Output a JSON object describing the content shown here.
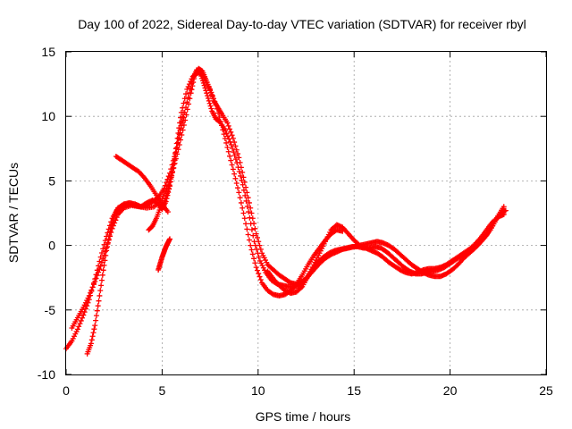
{
  "chart_data": {
    "type": "scatter",
    "title": "Day 100 of 2022, Sidereal Day-to-day VTEC variation (SDTVAR) for receiver rbyl",
    "xlabel": "GPS time / hours",
    "ylabel": "SDTVAR / TECUs",
    "xlim": [
      0,
      25
    ],
    "ylim": [
      -10,
      15
    ],
    "xticks": [
      0,
      5,
      10,
      15,
      20,
      25
    ],
    "yticks": [
      -10,
      -5,
      0,
      5,
      10,
      15
    ],
    "xtick_labels": [
      "0",
      "5",
      "10",
      "15",
      "20",
      "25"
    ],
    "ytick_labels": [
      "-10",
      "-5",
      "0",
      "5",
      "10",
      "15"
    ],
    "grid": true,
    "marker": "plus",
    "colors": {
      "series": "#ff0000",
      "grid": "#a0a0a0",
      "axis": "#000000"
    },
    "series": [
      {
        "name": "main-trace-a",
        "x": [
          0.0,
          0.3,
          0.6,
          0.9,
          1.2,
          1.5,
          1.8,
          2.1,
          2.4,
          2.7,
          3.0,
          3.3,
          3.6,
          3.9,
          4.2,
          4.5,
          4.8,
          5.1,
          5.4,
          5.7,
          6.0,
          6.3,
          6.6,
          6.8,
          7.0,
          7.2,
          7.4,
          7.6,
          7.8,
          8.0,
          8.3,
          8.6,
          8.9,
          9.2,
          9.5,
          9.8,
          10.1,
          10.4,
          10.7,
          11.0,
          11.3,
          11.6,
          11.9,
          12.2,
          12.5,
          12.8,
          13.1,
          13.4,
          13.7,
          14.0,
          14.3,
          14.6,
          14.9,
          15.2,
          15.5,
          15.8,
          16.1,
          16.4,
          16.7,
          17.0,
          17.3,
          17.6,
          17.9,
          18.2,
          18.5,
          18.8,
          19.1,
          19.4,
          19.7,
          20.0,
          20.3,
          20.6,
          20.9,
          21.2,
          21.5,
          21.8,
          22.1,
          22.4,
          22.7,
          22.9
        ],
        "y": [
          -8.0,
          -7.4,
          -6.5,
          -5.4,
          -4.2,
          -2.6,
          -0.9,
          0.7,
          2.1,
          2.9,
          3.2,
          3.3,
          3.2,
          3.0,
          3.1,
          3.4,
          3.7,
          4.4,
          5.6,
          7.2,
          9.1,
          11.1,
          12.9,
          13.6,
          13.3,
          12.4,
          11.4,
          10.4,
          9.8,
          9.6,
          8.9,
          7.8,
          6.4,
          4.7,
          2.6,
          0.3,
          -1.2,
          -2.1,
          -2.7,
          -3.0,
          -3.1,
          -3.2,
          -3.2,
          -3.1,
          -2.6,
          -1.9,
          -1.3,
          -0.9,
          -0.6,
          -0.4,
          -0.3,
          -0.2,
          -0.1,
          -0.1,
          -0.2,
          -0.2,
          -0.1,
          -0.2,
          -0.5,
          -0.9,
          -1.3,
          -1.7,
          -2.0,
          -2.2,
          -2.2,
          -2.1,
          -2.0,
          -1.9,
          -1.7,
          -1.4,
          -1.1,
          -0.8,
          -0.6,
          -0.3,
          0.1,
          0.6,
          1.2,
          2.0,
          2.6,
          2.7
        ]
      },
      {
        "name": "main-trace-b",
        "x": [
          0.3,
          0.6,
          0.9,
          1.2,
          1.5,
          1.8,
          2.1,
          2.4,
          2.7,
          3.0,
          3.4,
          3.8,
          4.2,
          4.6,
          5.0,
          5.3,
          5.6,
          5.9,
          6.2,
          6.5,
          6.7,
          6.9,
          7.1,
          7.3,
          7.5,
          7.7,
          7.9,
          8.1,
          8.4,
          8.7,
          9.0,
          9.3,
          9.6,
          9.9,
          10.2,
          10.5,
          10.8,
          11.1,
          11.4,
          11.7,
          12.0,
          12.3,
          12.6,
          12.9,
          13.2,
          13.5,
          13.8,
          14.1,
          14.4,
          14.7,
          15.0,
          15.3,
          15.6,
          15.9,
          16.2,
          16.5,
          16.8,
          17.1,
          17.4,
          17.7,
          18.0,
          18.3,
          18.6,
          18.9,
          19.2,
          19.5,
          19.8,
          20.1,
          20.4,
          20.7,
          21.0,
          21.3,
          21.6,
          21.9,
          22.2,
          22.5,
          22.8
        ],
        "y": [
          -6.4,
          -5.6,
          -4.8,
          -3.9,
          -2.8,
          -1.6,
          -0.2,
          1.3,
          2.4,
          2.9,
          3.1,
          3.0,
          2.9,
          3.0,
          3.6,
          4.6,
          6.0,
          7.8,
          9.7,
          11.8,
          13.2,
          13.7,
          13.5,
          12.8,
          12.0,
          11.2,
          10.7,
          10.2,
          9.5,
          8.3,
          6.8,
          4.9,
          2.9,
          0.9,
          -0.6,
          -1.5,
          -1.9,
          -2.3,
          -2.6,
          -2.9,
          -3.0,
          -2.8,
          -2.4,
          -1.9,
          -1.4,
          -1.0,
          -0.7,
          -0.5,
          -0.3,
          -0.2,
          -0.1,
          0.0,
          0.1,
          0.2,
          0.3,
          0.2,
          0.0,
          -0.3,
          -0.7,
          -1.1,
          -1.5,
          -1.8,
          -2.1,
          -2.3,
          -2.4,
          -2.4,
          -2.2,
          -1.9,
          -1.5,
          -1.0,
          -0.6,
          -0.2,
          0.3,
          0.8,
          1.5,
          2.3,
          3.0
        ]
      },
      {
        "name": "branch-trace-c",
        "x": [
          1.1,
          1.3,
          1.5,
          1.7,
          1.9,
          2.1,
          2.3,
          2.5,
          2.7,
          3.0,
          3.3,
          3.6,
          3.9,
          4.2,
          4.5,
          4.8,
          5.0,
          5.2,
          5.4,
          5.6,
          5.8,
          6.0,
          6.3,
          6.6,
          6.9,
          7.2,
          7.5,
          7.8,
          8.1,
          8.4,
          8.7,
          9.0,
          9.3,
          9.6,
          9.9,
          10.2,
          10.5,
          10.8,
          11.1,
          11.4,
          11.7,
          12.0,
          12.3,
          12.6,
          12.9,
          13.2,
          13.5,
          13.8,
          14.1,
          14.4
        ],
        "y": [
          -8.4,
          -7.6,
          -6.2,
          -4.3,
          -2.3,
          -0.4,
          1.1,
          2.3,
          2.9,
          3.1,
          3.2,
          3.1,
          3.0,
          3.3,
          3.5,
          3.2,
          2.8,
          3.4,
          4.6,
          6.3,
          8.3,
          10.3,
          12.1,
          13.1,
          13.4,
          13.0,
          12.1,
          10.9,
          9.3,
          7.6,
          5.9,
          4.1,
          2.1,
          0.0,
          -1.7,
          -2.9,
          -3.5,
          -3.8,
          -3.9,
          -3.8,
          -3.5,
          -3.0,
          -2.3,
          -1.5,
          -0.8,
          -0.2,
          0.4,
          0.9,
          1.2,
          1.1
        ]
      },
      {
        "name": "bump-trace-d",
        "x": [
          2.6,
          2.9,
          3.2,
          3.5,
          3.8,
          4.1,
          4.4,
          4.7,
          5.0,
          5.3
        ],
        "y": [
          6.9,
          6.6,
          6.3,
          6.0,
          5.7,
          5.2,
          4.6,
          3.9,
          3.2,
          2.6
        ]
      },
      {
        "name": "dip-trace-e",
        "x": [
          4.3,
          4.5,
          4.7,
          4.9,
          5.1,
          5.3,
          5.5,
          5.7,
          5.9,
          6.1
        ],
        "y": [
          1.2,
          1.5,
          2.1,
          2.9,
          3.3,
          4.2,
          5.4,
          6.9,
          8.6,
          10.3
        ]
      },
      {
        "name": "short-trace-f",
        "x": [
          4.8,
          4.9,
          5.0,
          5.1,
          5.2,
          5.3,
          5.4
        ],
        "y": [
          -1.9,
          -1.4,
          -0.9,
          -0.5,
          -0.1,
          0.2,
          0.5
        ]
      },
      {
        "name": "return-trace-g",
        "x": [
          10.5,
          10.8,
          11.1,
          11.4,
          11.7,
          12.0,
          12.3,
          12.6,
          12.9,
          13.2,
          13.5,
          13.8,
          14.1,
          14.4,
          14.7,
          15.0,
          15.3,
          15.6,
          15.9,
          16.2,
          16.5,
          16.8,
          17.1,
          17.4,
          17.7,
          18.0,
          18.3,
          18.6,
          18.9,
          19.2,
          19.5,
          19.8,
          20.1,
          20.4,
          20.7,
          21.0,
          21.3,
          21.6,
          21.9,
          22.2,
          22.5,
          22.8
        ],
        "y": [
          -2.0,
          -2.6,
          -3.1,
          -3.5,
          -3.7,
          -3.6,
          -3.2,
          -2.4,
          -1.5,
          -0.6,
          0.3,
          1.2,
          1.6,
          1.4,
          0.9,
          0.4,
          0.0,
          -0.2,
          -0.4,
          -0.6,
          -0.9,
          -1.3,
          -1.6,
          -1.9,
          -2.1,
          -2.2,
          -2.1,
          -1.9,
          -1.8,
          -1.8,
          -1.7,
          -1.5,
          -1.2,
          -0.9,
          -0.6,
          -0.3,
          0.1,
          0.6,
          1.2,
          1.8,
          2.2,
          2.4
        ]
      }
    ]
  }
}
